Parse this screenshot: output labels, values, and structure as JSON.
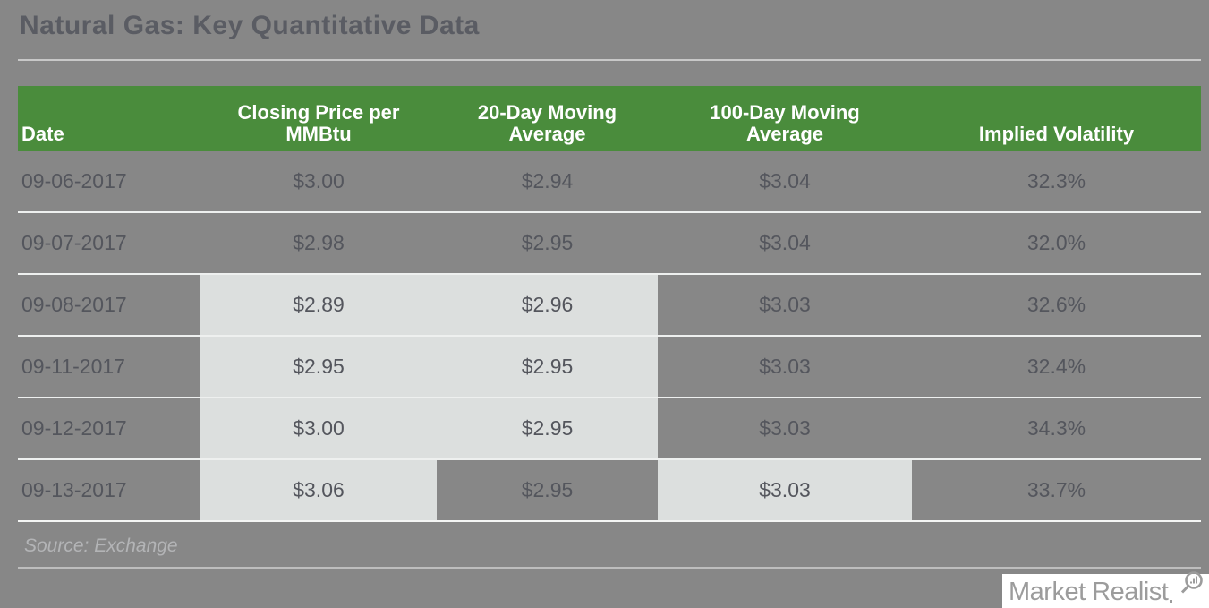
{
  "title": "Natural Gas: Key Quantitative Data",
  "source_note": "Source: Exchange",
  "logo": {
    "text": "Market Realist",
    "icon": "magnifier-bar-chart-icon"
  },
  "colors": {
    "background": "#878787",
    "header_bg": "#4a8c3c",
    "header_text": "#ffffff",
    "highlight_cell": "#dcdfde",
    "text": "#54565d",
    "title_text": "#5a5c63",
    "muted_text": "#b3b4b6",
    "row_separator": "#eef0ef",
    "rule": "#c8c8c8",
    "logo_bg": "#ffffff",
    "logo_text": "#9c9c9c"
  },
  "chart_data": {
    "type": "table",
    "title": "Natural Gas: Key Quantitative Data",
    "columns": [
      "Date",
      "Closing Price per MMBtu",
      "20-Day Moving Average",
      "100-Day Moving Average",
      "Implied Volatility"
    ],
    "rows": [
      [
        "09-06-2017",
        "$3.00",
        "$2.94",
        "$3.04",
        "32.3%"
      ],
      [
        "09-07-2017",
        "$2.98",
        "$2.95",
        "$3.04",
        "32.0%"
      ],
      [
        "09-08-2017",
        "$2.89",
        "$2.96",
        "$3.03",
        "32.6%"
      ],
      [
        "09-11-2017",
        "$2.95",
        "$2.95",
        "$3.03",
        "32.4%"
      ],
      [
        "09-12-2017",
        "$3.00",
        "$2.95",
        "$3.03",
        "34.3%"
      ],
      [
        "09-13-2017",
        "$3.06",
        "$2.95",
        "$3.03",
        "33.7%"
      ]
    ],
    "highlighted_cells": [
      [
        2,
        1
      ],
      [
        2,
        2
      ],
      [
        3,
        1
      ],
      [
        3,
        2
      ],
      [
        4,
        1
      ],
      [
        4,
        2
      ],
      [
        5,
        1
      ],
      [
        5,
        3
      ]
    ],
    "source": "Source: Exchange"
  }
}
